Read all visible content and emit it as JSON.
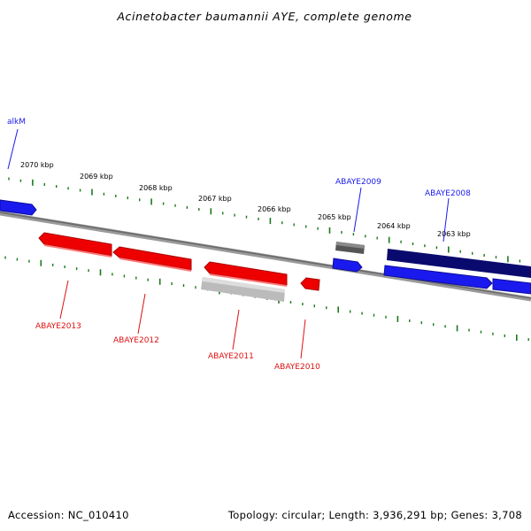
{
  "title": "Acinetobacter baumannii AYE, complete genome",
  "footer": {
    "accession": "Accession: NC_010410",
    "summary": "Topology: circular; Length: 3,936,291 bp; Genes: 3,708"
  },
  "ticks": [
    "2070 kbp",
    "2069 kbp",
    "2068 kbp",
    "2067 kbp",
    "2066 kbp",
    "2065 kbp",
    "2064 kbp",
    "2063 kbp"
  ],
  "genes": [
    {
      "name": "alkM",
      "strand": "forward",
      "color": "#1a1aee"
    },
    {
      "name": "ABAYE2013",
      "strand": "reverse",
      "color": "#dd1111"
    },
    {
      "name": "ABAYE2012",
      "strand": "reverse",
      "color": "#dd1111"
    },
    {
      "name": "ABAYE2011",
      "strand": "reverse",
      "color": "#dd1111"
    },
    {
      "name": "ABAYE2010",
      "strand": "reverse",
      "color": "#dd1111"
    },
    {
      "name": "ABAYE2009",
      "strand": "forward",
      "color": "#1a1aee"
    },
    {
      "name": "ABAYE2008",
      "strand": "forward",
      "color": "#1a1aee"
    }
  ],
  "colors": {
    "forward_gene": "#1a1aee",
    "reverse_gene": "#ee0000",
    "pseudo_gene": "#bbbbbb",
    "rna_gene": "#666666",
    "operon": "#0a0a6e",
    "backbone": "#888888",
    "tick": "#1a7a1a"
  }
}
